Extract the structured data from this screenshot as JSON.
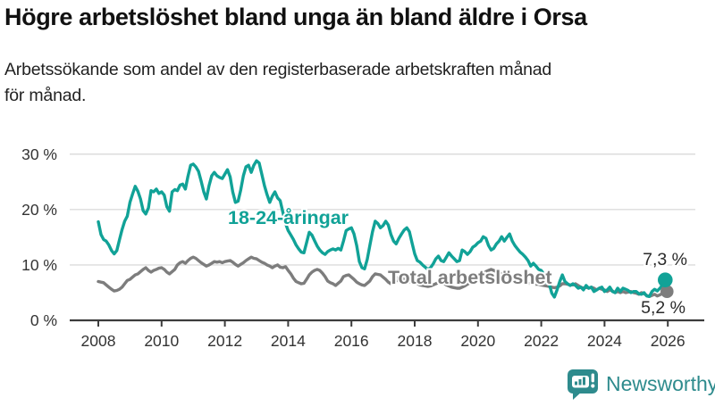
{
  "header": {
    "title": "Högre arbetslöshet bland unga än bland äldre i Orsa",
    "subtitle_line1": "Arbetssökande som andel av den registerbaserade arbetskraften månad",
    "subtitle_line2": "för månad."
  },
  "colors": {
    "youth_line": "#11a297",
    "total_line": "#7d7d7d",
    "grid": "#dcdcdc",
    "axis": "#3c3c3c",
    "text": "#333333",
    "brand_teal": "#2e8b8d"
  },
  "chart_data": {
    "type": "line",
    "title": "Högre arbetslöshet bland unga än bland äldre i Orsa",
    "subtitle": "Arbetssökande som andel av den registerbaserade arbetskraften månad för månad.",
    "unit": "%",
    "start": "2008-01",
    "end": "2025-12",
    "points_per_month": 1,
    "ylim": [
      0,
      30
    ],
    "grid": "horizontal",
    "y_tick_labels": [
      "0 %",
      "10 %",
      "20 %",
      "30 %"
    ],
    "x_tick_labels": [
      "2008",
      "2010",
      "2012",
      "2014",
      "2016",
      "2018",
      "2020",
      "2022",
      "2024",
      "2026"
    ],
    "series": [
      {
        "name": "Total arbetslöshet",
        "color": "#7d7d7d",
        "end_value": 5.2,
        "end_label": "5,2 %",
        "values": [
          7.0,
          6.9,
          6.8,
          6.4,
          6.0,
          5.6,
          5.3,
          5.4,
          5.6,
          6.0,
          6.6,
          7.2,
          7.4,
          7.8,
          8.2,
          8.4,
          8.8,
          9.2,
          9.5,
          9.0,
          8.7,
          9.0,
          9.2,
          9.4,
          9.5,
          9.2,
          8.7,
          8.4,
          8.8,
          9.2,
          10.0,
          10.4,
          10.6,
          10.3,
          10.8,
          11.2,
          11.4,
          11.2,
          10.8,
          10.4,
          10.1,
          9.8,
          10.0,
          10.3,
          10.6,
          10.5,
          10.6,
          10.4,
          10.6,
          10.7,
          10.8,
          10.5,
          10.1,
          9.8,
          10.1,
          10.4,
          10.8,
          11.1,
          11.4,
          11.2,
          11.1,
          10.8,
          10.5,
          10.3,
          10.0,
          9.8,
          9.5,
          9.8,
          10.0,
          9.6,
          9.5,
          9.7,
          9.0,
          8.4,
          7.6,
          7.0,
          6.8,
          6.6,
          6.7,
          7.4,
          8.2,
          8.7,
          9.0,
          9.2,
          9.0,
          8.5,
          7.9,
          7.1,
          6.8,
          6.6,
          6.3,
          6.7,
          7.1,
          7.9,
          8.1,
          8.2,
          7.8,
          7.4,
          6.9,
          6.6,
          6.4,
          6.3,
          6.7,
          7.1,
          7.9,
          8.4,
          8.3,
          8.2,
          7.8,
          7.4,
          6.9,
          6.6,
          6.8,
          7.1,
          7.9,
          7.7,
          7.4,
          7.2,
          7.0,
          6.8,
          6.8,
          6.6,
          6.4,
          6.3,
          6.2,
          6.1,
          6.2,
          6.4,
          6.6,
          6.8,
          6.9,
          6.7,
          6.4,
          6.2,
          6.0,
          5.9,
          5.8,
          5.8,
          6.0,
          6.2,
          6.5,
          6.8,
          7.0,
          7.2,
          7.5,
          7.8,
          8.3,
          8.8,
          9.0,
          9.2,
          9.0,
          8.8,
          8.6,
          8.4,
          8.2,
          8.0,
          7.8,
          7.6,
          7.4,
          7.2,
          7.0,
          6.9,
          6.8,
          6.7,
          6.6,
          6.6,
          6.5,
          6.5,
          6.4,
          6.3,
          6.2,
          6.1,
          6.0,
          5.9,
          6.0,
          6.2,
          6.6,
          6.6,
          6.5,
          6.4,
          6.4,
          6.6,
          6.3,
          6.0,
          5.8,
          6.0,
          5.8,
          6.0,
          5.8,
          5.5,
          5.8,
          5.6,
          5.5,
          5.2,
          5.5,
          5.3,
          5.0,
          5.2,
          5.0,
          5.2,
          5.0,
          5.1,
          5.2,
          5.0,
          4.9,
          4.7,
          5.0,
          4.8,
          4.5,
          4.3,
          4.5,
          4.7,
          4.4,
          4.6,
          4.9,
          5.2
        ]
      },
      {
        "name": "18-24-åringar",
        "color": "#11a297",
        "end_value": 7.3,
        "end_label": "7,3 %",
        "values": [
          17.8,
          15.5,
          14.6,
          14.3,
          13.6,
          12.6,
          12.0,
          12.6,
          14.5,
          16.4,
          17.9,
          18.8,
          21.3,
          22.8,
          24.2,
          23.3,
          21.9,
          19.8,
          19.2,
          20.3,
          23.4,
          23.2,
          23.7,
          22.9,
          23.2,
          22.6,
          20.5,
          19.7,
          23.2,
          23.6,
          23.4,
          24.4,
          24.6,
          23.7,
          26.0,
          28.0,
          28.2,
          27.7,
          26.9,
          25.1,
          23.2,
          21.9,
          24.3,
          26.1,
          26.7,
          26.1,
          25.8,
          25.6,
          26.4,
          27.2,
          25.9,
          23.2,
          21.3,
          21.5,
          23.5,
          26.1,
          27.7,
          28.0,
          26.7,
          28.0,
          28.8,
          28.4,
          26.4,
          24.3,
          22.7,
          21.3,
          22.4,
          23.2,
          22.1,
          21.6,
          19.5,
          17.5,
          16.2,
          15.4,
          14.6,
          13.6,
          12.9,
          12.3,
          12.2,
          14.0,
          15.9,
          15.4,
          14.4,
          13.4,
          12.7,
          12.2,
          11.9,
          12.4,
          12.7,
          12.9,
          12.7,
          13.0,
          12.7,
          14.3,
          16.2,
          16.5,
          16.7,
          15.6,
          13.5,
          10.6,
          9.5,
          9.3,
          11.0,
          13.5,
          16.0,
          17.9,
          17.5,
          16.7,
          17.1,
          17.9,
          17.2,
          15.5,
          14.3,
          13.8,
          14.8,
          15.6,
          16.3,
          16.7,
          16.0,
          14.0,
          12.0,
          10.8,
          10.5,
          10.0,
          9.6,
          9.2,
          9.5,
          10.2,
          11.1,
          11.6,
          10.8,
          10.6,
          11.4,
          12.2,
          11.6,
          11.1,
          10.6,
          10.8,
          12.7,
          12.4,
          11.9,
          12.4,
          13.2,
          13.5,
          14.0,
          14.3,
          15.1,
          14.8,
          13.5,
          12.7,
          13.0,
          13.8,
          14.3,
          15.1,
          14.3,
          15.0,
          15.6,
          14.3,
          13.5,
          12.9,
          12.3,
          11.9,
          11.4,
          10.8,
          9.8,
          10.3,
          9.8,
          9.2,
          9.0,
          8.4,
          6.8,
          6.6,
          4.9,
          4.2,
          5.5,
          7.0,
          8.2,
          7.0,
          6.6,
          6.3,
          6.6,
          6.3,
          5.8,
          6.0,
          5.5,
          6.3,
          5.8,
          6.0,
          5.2,
          5.5,
          5.8,
          6.0,
          5.2,
          5.5,
          6.0,
          5.2,
          5.0,
          5.8,
          5.2,
          5.8,
          5.6,
          5.4,
          5.0,
          5.2,
          5.2,
          4.8,
          4.7,
          5.0,
          4.4,
          4.3,
          5.2,
          5.6,
          5.3,
          5.8,
          6.4,
          7.3
        ]
      }
    ],
    "legend_position": "inline-labels"
  },
  "footer": {
    "brand": "Newsworthy"
  }
}
